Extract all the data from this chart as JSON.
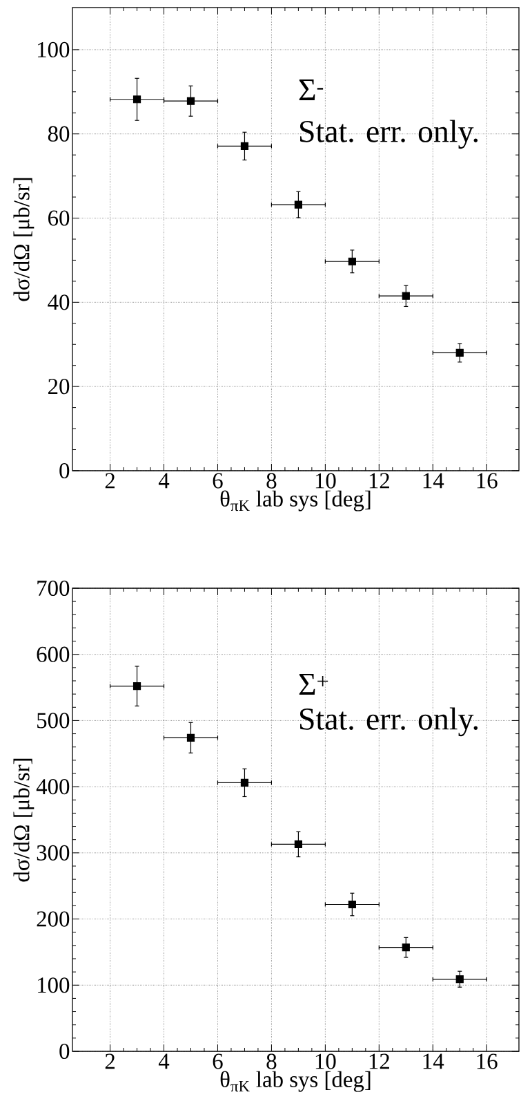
{
  "chart_data": [
    {
      "type": "scatter",
      "xlabel": "θ$_{πK}$ lab sys [deg]",
      "ylabel": "dσ/dΩ [μb/sr]",
      "annotations": [
        "Σ$^{-}$",
        "Stat. err. only."
      ],
      "x": [
        3,
        5,
        7,
        9,
        11,
        13,
        15
      ],
      "series": [
        {
          "color": "#000000",
          "values": [
            88.2,
            87.8,
            77.1,
            63.2,
            49.7,
            41.5,
            28.0
          ],
          "errors": [
            5.0,
            3.6,
            3.3,
            3.1,
            2.7,
            2.5,
            2.2
          ],
          "xerrors": [
            1,
            1,
            1,
            1,
            1,
            1,
            1
          ]
        }
      ],
      "xlim": [
        0.6,
        17.2
      ],
      "ylim": [
        0,
        110
      ],
      "xticks": [
        2,
        4,
        6,
        8,
        10,
        12,
        14,
        16
      ],
      "yticks": [
        0,
        20,
        40,
        60,
        80,
        100
      ],
      "grid": true,
      "marker": "square"
    },
    {
      "type": "scatter",
      "xlabel": "θ$_{πK}$ lab sys [deg]",
      "ylabel": "dσ/dΩ [μb/sr]",
      "annotations": [
        "Σ$^{+}$",
        "Stat. err. only."
      ],
      "x": [
        3,
        5,
        7,
        9,
        11,
        13,
        15
      ],
      "series": [
        {
          "color": "#000000",
          "values": [
            552,
            474,
            406,
            313,
            222,
            157,
            109
          ],
          "errors": [
            30,
            23,
            21,
            19,
            17,
            15,
            12
          ],
          "xerrors": [
            1,
            1,
            1,
            1,
            1,
            1,
            1
          ]
        }
      ],
      "xlim": [
        0.6,
        17.2
      ],
      "ylim": [
        0,
        700
      ],
      "xticks": [
        2,
        4,
        6,
        8,
        10,
        12,
        14,
        16
      ],
      "yticks": [
        0,
        100,
        200,
        300,
        400,
        500,
        600,
        700
      ],
      "grid": true,
      "marker": "square"
    }
  ]
}
